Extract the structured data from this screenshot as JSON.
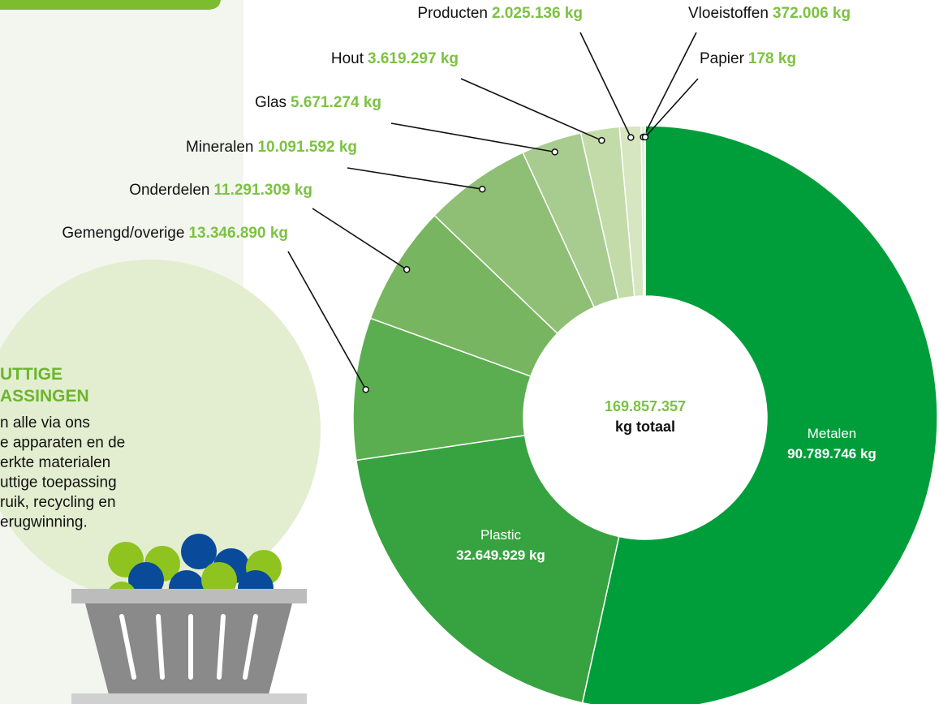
{
  "chart_data": {
    "type": "donut",
    "categories": [
      "Metalen",
      "Plastic",
      "Gemengd/overige",
      "Onderdelen",
      "Mineralen",
      "Glas",
      "Hout",
      "Producten",
      "Vloeistoffen",
      "Papier"
    ],
    "values": [
      90789746,
      32649929,
      13346890,
      11291309,
      10091592,
      5671274,
      3619297,
      2025136,
      372006,
      178
    ],
    "value_labels": [
      "90.789.746 kg",
      "32.649.929 kg",
      "13.346.890 kg",
      "11.291.309 kg",
      "10.091.592 kg",
      "5.671.274 kg",
      "3.619.297 kg",
      "2.025.136 kg",
      "372.006 kg",
      "178 kg"
    ],
    "colors": [
      "#009e3a",
      "#37a340",
      "#5aae50",
      "#78b560",
      "#8fbf74",
      "#a8cc90",
      "#c3dba9",
      "#d5e6c0",
      "#e3eed3",
      "#eef4e5"
    ],
    "center_value": "169.857.357",
    "center_text": "kg totaal"
  },
  "side_panel": {
    "title": [
      "UTTIGE",
      "ASSINGEN"
    ],
    "lines": [
      "n alle via ons",
      "e apparaten en de",
      "erkte materialen",
      "uttige toepassing",
      "ruik, recycling en",
      "erugwinning."
    ]
  }
}
